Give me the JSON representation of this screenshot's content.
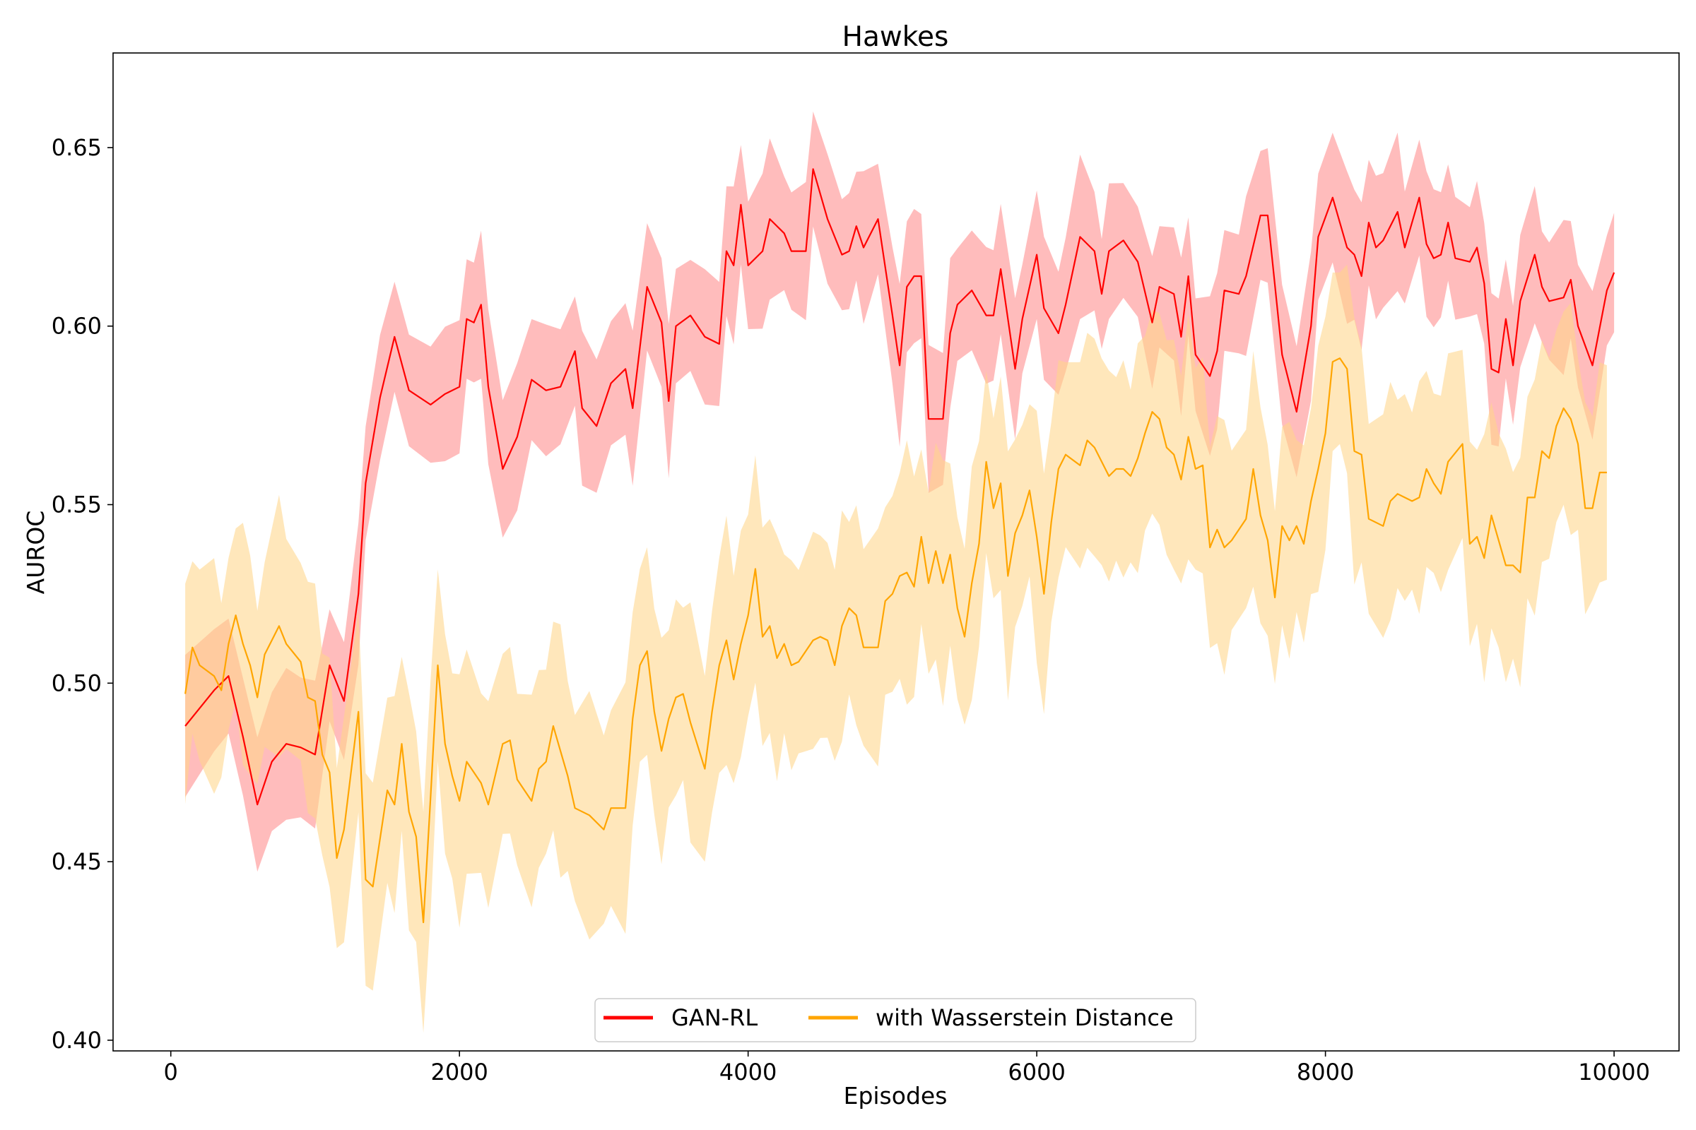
{
  "chart_data": {
    "type": "line",
    "title": "Hawkes",
    "xlabel": "Episodes",
    "ylabel": "AUROC",
    "xlim": [
      -400,
      10450
    ],
    "ylim": [
      0.397,
      0.6765
    ],
    "xticks": [
      0,
      2000,
      4000,
      6000,
      8000,
      10000
    ],
    "xtick_labels": [
      "0",
      "2000",
      "4000",
      "6000",
      "8000",
      "10000"
    ],
    "yticks": [
      0.4,
      0.45,
      0.5,
      0.55,
      0.6,
      0.65
    ],
    "ytick_labels": [
      "0.40",
      "0.45",
      "0.50",
      "0.55",
      "0.60",
      "0.65"
    ],
    "grid": false,
    "legend_position": "bottom-center",
    "shaded_band": "mean ± std",
    "series": [
      {
        "name": "GAN-RL",
        "color": "#ff0000",
        "band_color": "#ff8c8c",
        "points": [
          [
            100,
            0.488
          ],
          [
            300,
            0.498
          ],
          [
            400,
            0.502
          ],
          [
            500,
            0.485
          ],
          [
            600,
            0.466
          ],
          [
            700,
            0.478
          ],
          [
            800,
            0.483
          ],
          [
            900,
            0.482
          ],
          [
            1000,
            0.48
          ],
          [
            1100,
            0.505
          ],
          [
            1200,
            0.495
          ],
          [
            1300,
            0.525
          ],
          [
            1350,
            0.556
          ],
          [
            1450,
            0.58
          ],
          [
            1550,
            0.597
          ],
          [
            1650,
            0.582
          ],
          [
            1800,
            0.578
          ],
          [
            1900,
            0.581
          ],
          [
            2000,
            0.583
          ],
          [
            2050,
            0.602
          ],
          [
            2100,
            0.601
          ],
          [
            2150,
            0.606
          ],
          [
            2200,
            0.583
          ],
          [
            2300,
            0.56
          ],
          [
            2400,
            0.569
          ],
          [
            2500,
            0.585
          ],
          [
            2600,
            0.582
          ],
          [
            2700,
            0.583
          ],
          [
            2800,
            0.593
          ],
          [
            2850,
            0.577
          ],
          [
            2950,
            0.572
          ],
          [
            3050,
            0.584
          ],
          [
            3150,
            0.588
          ],
          [
            3200,
            0.577
          ],
          [
            3300,
            0.611
          ],
          [
            3400,
            0.601
          ],
          [
            3450,
            0.579
          ],
          [
            3500,
            0.6
          ],
          [
            3600,
            0.603
          ],
          [
            3700,
            0.597
          ],
          [
            3800,
            0.595
          ],
          [
            3850,
            0.621
          ],
          [
            3900,
            0.617
          ],
          [
            3950,
            0.634
          ],
          [
            4000,
            0.617
          ],
          [
            4100,
            0.621
          ],
          [
            4150,
            0.63
          ],
          [
            4250,
            0.626
          ],
          [
            4300,
            0.621
          ],
          [
            4400,
            0.621
          ],
          [
            4450,
            0.644
          ],
          [
            4550,
            0.63
          ],
          [
            4650,
            0.62
          ],
          [
            4700,
            0.621
          ],
          [
            4750,
            0.628
          ],
          [
            4800,
            0.622
          ],
          [
            4900,
            0.63
          ],
          [
            5000,
            0.603
          ],
          [
            5050,
            0.589
          ],
          [
            5100,
            0.611
          ],
          [
            5150,
            0.614
          ],
          [
            5200,
            0.614
          ],
          [
            5250,
            0.574
          ],
          [
            5350,
            0.574
          ],
          [
            5400,
            0.598
          ],
          [
            5450,
            0.606
          ],
          [
            5550,
            0.61
          ],
          [
            5650,
            0.603
          ],
          [
            5700,
            0.603
          ],
          [
            5750,
            0.616
          ],
          [
            5850,
            0.588
          ],
          [
            5900,
            0.602
          ],
          [
            6000,
            0.62
          ],
          [
            6050,
            0.605
          ],
          [
            6150,
            0.598
          ],
          [
            6200,
            0.606
          ],
          [
            6300,
            0.625
          ],
          [
            6400,
            0.621
          ],
          [
            6450,
            0.609
          ],
          [
            6500,
            0.621
          ],
          [
            6600,
            0.624
          ],
          [
            6700,
            0.618
          ],
          [
            6800,
            0.601
          ],
          [
            6850,
            0.611
          ],
          [
            6950,
            0.609
          ],
          [
            7000,
            0.597
          ],
          [
            7050,
            0.614
          ],
          [
            7100,
            0.592
          ],
          [
            7200,
            0.586
          ],
          [
            7250,
            0.593
          ],
          [
            7300,
            0.61
          ],
          [
            7400,
            0.609
          ],
          [
            7450,
            0.614
          ],
          [
            7550,
            0.631
          ],
          [
            7600,
            0.631
          ],
          [
            7700,
            0.592
          ],
          [
            7800,
            0.576
          ],
          [
            7900,
            0.6
          ],
          [
            7950,
            0.625
          ],
          [
            8050,
            0.636
          ],
          [
            8150,
            0.622
          ],
          [
            8200,
            0.62
          ],
          [
            8250,
            0.614
          ],
          [
            8300,
            0.629
          ],
          [
            8350,
            0.622
          ],
          [
            8400,
            0.624
          ],
          [
            8500,
            0.632
          ],
          [
            8550,
            0.622
          ],
          [
            8650,
            0.636
          ],
          [
            8700,
            0.623
          ],
          [
            8750,
            0.619
          ],
          [
            8800,
            0.62
          ],
          [
            8850,
            0.629
          ],
          [
            8900,
            0.619
          ],
          [
            9000,
            0.618
          ],
          [
            9050,
            0.622
          ],
          [
            9100,
            0.612
          ],
          [
            9150,
            0.588
          ],
          [
            9200,
            0.587
          ],
          [
            9250,
            0.602
          ],
          [
            9300,
            0.589
          ],
          [
            9350,
            0.607
          ],
          [
            9450,
            0.62
          ],
          [
            9500,
            0.611
          ],
          [
            9550,
            0.607
          ],
          [
            9650,
            0.608
          ],
          [
            9700,
            0.613
          ],
          [
            9750,
            0.6
          ],
          [
            9850,
            0.589
          ],
          [
            9950,
            0.61
          ],
          [
            10000,
            0.615
          ]
        ],
        "std": 0.019
      },
      {
        "name": "with Wasserstein Distance",
        "color": "#ffa500",
        "band_color": "#ffd68a",
        "points": [
          [
            100,
            0.497
          ],
          [
            150,
            0.51
          ],
          [
            200,
            0.505
          ],
          [
            300,
            0.502
          ],
          [
            350,
            0.498
          ],
          [
            400,
            0.511
          ],
          [
            450,
            0.519
          ],
          [
            500,
            0.511
          ],
          [
            550,
            0.505
          ],
          [
            600,
            0.496
          ],
          [
            650,
            0.508
          ],
          [
            750,
            0.516
          ],
          [
            800,
            0.511
          ],
          [
            900,
            0.506
          ],
          [
            950,
            0.496
          ],
          [
            1000,
            0.495
          ],
          [
            1050,
            0.48
          ],
          [
            1100,
            0.475
          ],
          [
            1150,
            0.451
          ],
          [
            1200,
            0.459
          ],
          [
            1300,
            0.492
          ],
          [
            1350,
            0.445
          ],
          [
            1400,
            0.443
          ],
          [
            1500,
            0.47
          ],
          [
            1550,
            0.466
          ],
          [
            1600,
            0.483
          ],
          [
            1650,
            0.464
          ],
          [
            1700,
            0.457
          ],
          [
            1750,
            0.433
          ],
          [
            1800,
            0.468
          ],
          [
            1850,
            0.505
          ],
          [
            1900,
            0.483
          ],
          [
            1950,
            0.474
          ],
          [
            2000,
            0.467
          ],
          [
            2050,
            0.478
          ],
          [
            2150,
            0.472
          ],
          [
            2200,
            0.466
          ],
          [
            2300,
            0.483
          ],
          [
            2350,
            0.484
          ],
          [
            2400,
            0.473
          ],
          [
            2500,
            0.467
          ],
          [
            2550,
            0.476
          ],
          [
            2600,
            0.478
          ],
          [
            2650,
            0.488
          ],
          [
            2700,
            0.481
          ],
          [
            2750,
            0.474
          ],
          [
            2800,
            0.465
          ],
          [
            2900,
            0.463
          ],
          [
            3000,
            0.459
          ],
          [
            3050,
            0.465
          ],
          [
            3150,
            0.465
          ],
          [
            3200,
            0.49
          ],
          [
            3250,
            0.505
          ],
          [
            3300,
            0.509
          ],
          [
            3350,
            0.492
          ],
          [
            3400,
            0.481
          ],
          [
            3450,
            0.49
          ],
          [
            3500,
            0.496
          ],
          [
            3550,
            0.497
          ],
          [
            3600,
            0.489
          ],
          [
            3700,
            0.476
          ],
          [
            3750,
            0.492
          ],
          [
            3800,
            0.505
          ],
          [
            3850,
            0.512
          ],
          [
            3900,
            0.501
          ],
          [
            3950,
            0.511
          ],
          [
            4000,
            0.519
          ],
          [
            4050,
            0.532
          ],
          [
            4100,
            0.513
          ],
          [
            4150,
            0.516
          ],
          [
            4200,
            0.507
          ],
          [
            4250,
            0.511
          ],
          [
            4300,
            0.505
          ],
          [
            4350,
            0.506
          ],
          [
            4450,
            0.512
          ],
          [
            4500,
            0.513
          ],
          [
            4550,
            0.512
          ],
          [
            4600,
            0.505
          ],
          [
            4650,
            0.516
          ],
          [
            4700,
            0.521
          ],
          [
            4750,
            0.519
          ],
          [
            4800,
            0.51
          ],
          [
            4900,
            0.51
          ],
          [
            4950,
            0.523
          ],
          [
            5000,
            0.525
          ],
          [
            5050,
            0.53
          ],
          [
            5100,
            0.531
          ],
          [
            5150,
            0.527
          ],
          [
            5200,
            0.541
          ],
          [
            5250,
            0.528
          ],
          [
            5300,
            0.537
          ],
          [
            5350,
            0.528
          ],
          [
            5400,
            0.536
          ],
          [
            5450,
            0.521
          ],
          [
            5500,
            0.513
          ],
          [
            5550,
            0.528
          ],
          [
            5600,
            0.539
          ],
          [
            5650,
            0.562
          ],
          [
            5700,
            0.549
          ],
          [
            5750,
            0.556
          ],
          [
            5800,
            0.53
          ],
          [
            5850,
            0.542
          ],
          [
            5900,
            0.547
          ],
          [
            5950,
            0.554
          ],
          [
            6000,
            0.541
          ],
          [
            6050,
            0.525
          ],
          [
            6100,
            0.545
          ],
          [
            6150,
            0.56
          ],
          [
            6200,
            0.564
          ],
          [
            6300,
            0.561
          ],
          [
            6350,
            0.568
          ],
          [
            6400,
            0.566
          ],
          [
            6450,
            0.562
          ],
          [
            6500,
            0.558
          ],
          [
            6550,
            0.56
          ],
          [
            6600,
            0.56
          ],
          [
            6650,
            0.558
          ],
          [
            6700,
            0.563
          ],
          [
            6750,
            0.57
          ],
          [
            6800,
            0.576
          ],
          [
            6850,
            0.574
          ],
          [
            6900,
            0.566
          ],
          [
            6950,
            0.564
          ],
          [
            7000,
            0.557
          ],
          [
            7050,
            0.569
          ],
          [
            7100,
            0.56
          ],
          [
            7150,
            0.561
          ],
          [
            7200,
            0.538
          ],
          [
            7250,
            0.543
          ],
          [
            7300,
            0.538
          ],
          [
            7350,
            0.54
          ],
          [
            7450,
            0.546
          ],
          [
            7500,
            0.56
          ],
          [
            7550,
            0.547
          ],
          [
            7600,
            0.54
          ],
          [
            7650,
            0.524
          ],
          [
            7700,
            0.544
          ],
          [
            7750,
            0.54
          ],
          [
            7800,
            0.544
          ],
          [
            7850,
            0.539
          ],
          [
            7900,
            0.551
          ],
          [
            7950,
            0.56
          ],
          [
            8000,
            0.57
          ],
          [
            8050,
            0.59
          ],
          [
            8100,
            0.591
          ],
          [
            8150,
            0.588
          ],
          [
            8200,
            0.565
          ],
          [
            8250,
            0.564
          ],
          [
            8300,
            0.546
          ],
          [
            8400,
            0.544
          ],
          [
            8450,
            0.551
          ],
          [
            8500,
            0.553
          ],
          [
            8550,
            0.552
          ],
          [
            8600,
            0.551
          ],
          [
            8650,
            0.552
          ],
          [
            8700,
            0.56
          ],
          [
            8750,
            0.556
          ],
          [
            8800,
            0.553
          ],
          [
            8850,
            0.562
          ],
          [
            8950,
            0.567
          ],
          [
            9000,
            0.539
          ],
          [
            9050,
            0.541
          ],
          [
            9100,
            0.535
          ],
          [
            9150,
            0.547
          ],
          [
            9200,
            0.54
          ],
          [
            9250,
            0.533
          ],
          [
            9300,
            0.533
          ],
          [
            9350,
            0.531
          ],
          [
            9400,
            0.552
          ],
          [
            9450,
            0.552
          ],
          [
            9500,
            0.565
          ],
          [
            9550,
            0.563
          ],
          [
            9600,
            0.572
          ],
          [
            9650,
            0.577
          ],
          [
            9700,
            0.574
          ],
          [
            9750,
            0.567
          ],
          [
            9800,
            0.549
          ],
          [
            9850,
            0.549
          ],
          [
            9900,
            0.559
          ],
          [
            9950,
            0.559
          ]
        ],
        "std": 0.03
      }
    ]
  }
}
